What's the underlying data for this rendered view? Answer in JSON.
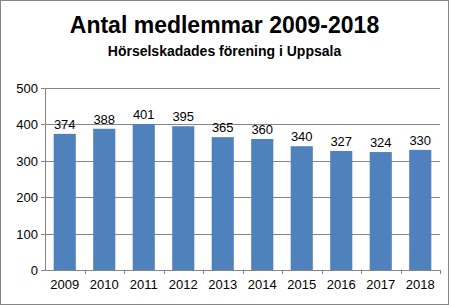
{
  "chart_data": {
    "type": "bar",
    "title": "Antal medlemmar 2009-2018",
    "subtitle": "Hörselskadades förening i Uppsala",
    "categories": [
      "2009",
      "2010",
      "2011",
      "2012",
      "2013",
      "2014",
      "2015",
      "2016",
      "2017",
      "2018"
    ],
    "values": [
      374,
      388,
      401,
      395,
      365,
      360,
      340,
      327,
      324,
      330
    ],
    "color": "#4f81bd",
    "ylim": [
      0,
      500
    ],
    "yticks": [
      0,
      100,
      200,
      300,
      400,
      500
    ],
    "grid": true,
    "data_labels": true
  }
}
